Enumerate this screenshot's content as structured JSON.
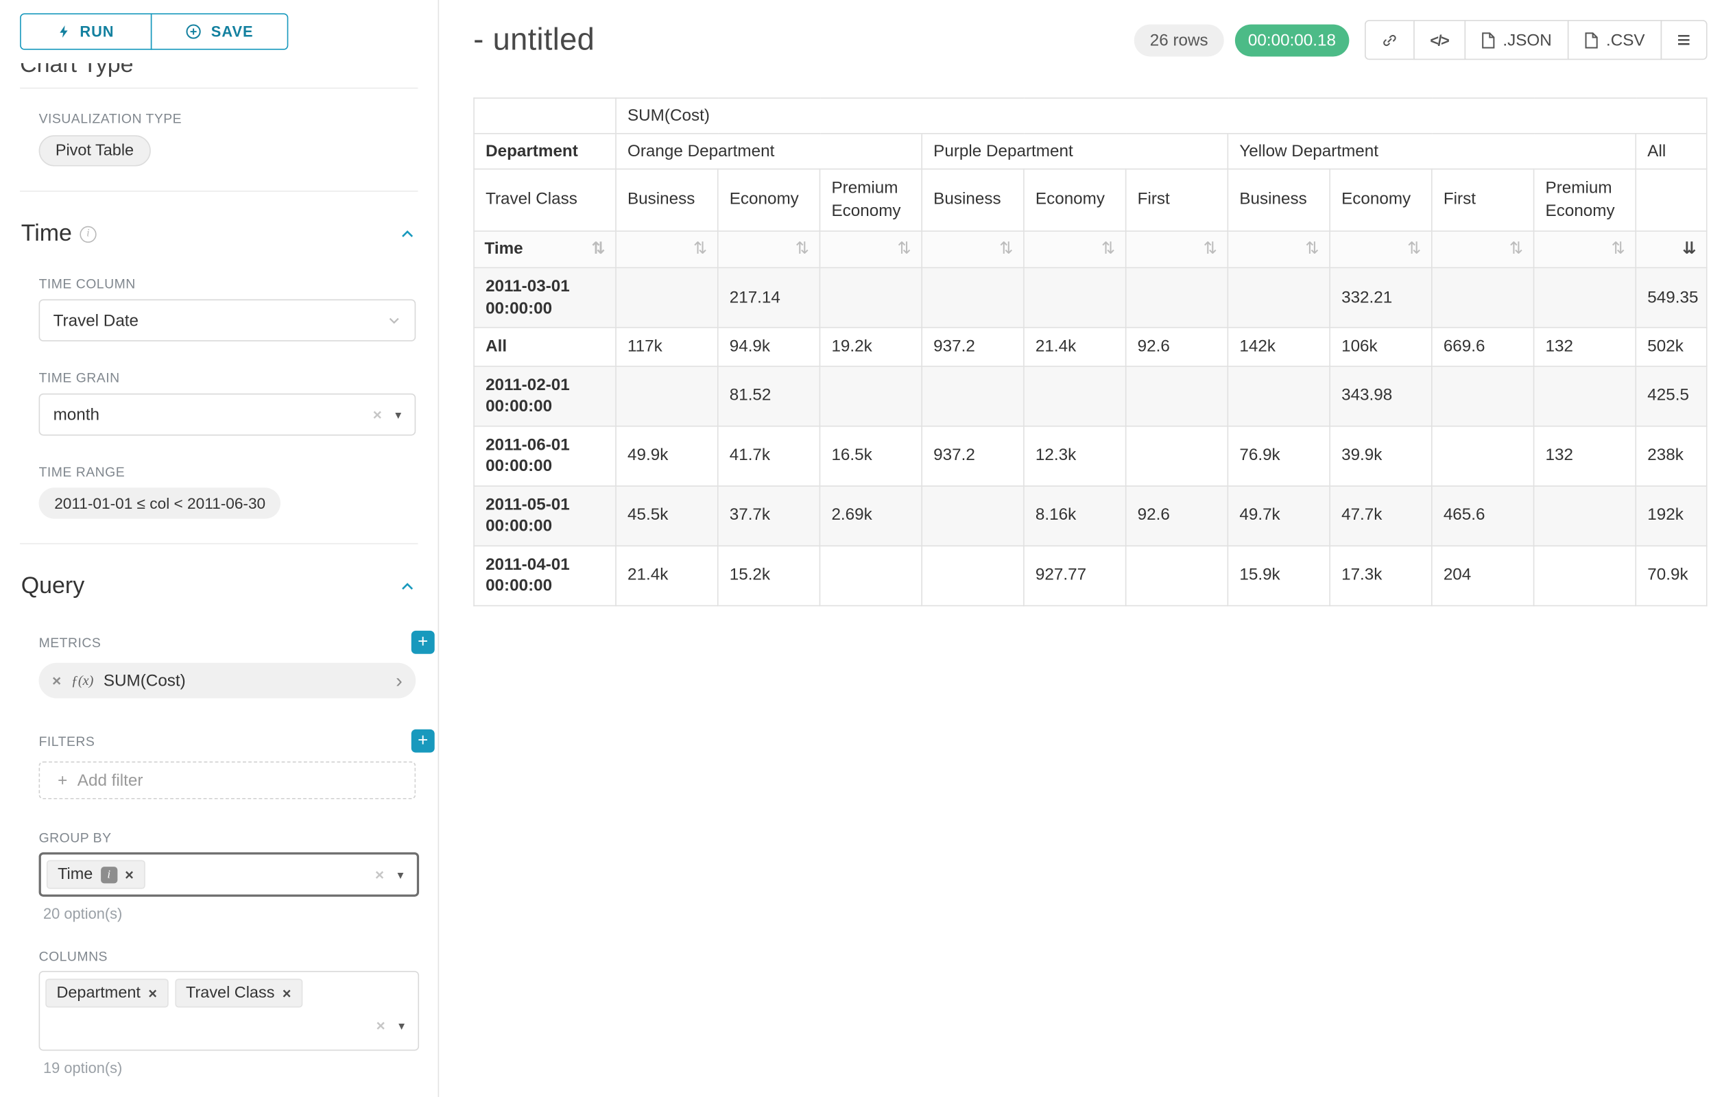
{
  "colors": {
    "accent": "#1899bd",
    "success": "#4cbb87",
    "table_border": "#e0e0e0",
    "chip_bg": "#f0f0f0"
  },
  "icons": {
    "close": "×",
    "plus": "+",
    "sort": "⇅",
    "sort_desc": "⇊",
    "caret_down": "▾",
    "chevron_right": "›",
    "code": "</>",
    "menu": "≡",
    "info": "i"
  },
  "sidebar": {
    "run_label": "RUN",
    "save_label": "SAVE",
    "chart_type_heading": "Chart Type",
    "visualization": {
      "label": "VISUALIZATION TYPE",
      "value": "Pivot Table"
    },
    "time": {
      "title": "Time",
      "column_label": "TIME COLUMN",
      "column_value": "Travel Date",
      "grain_label": "TIME GRAIN",
      "grain_value": "month",
      "range_label": "TIME RANGE",
      "range_value": "2011-01-01 ≤ col < 2011-06-30"
    },
    "query": {
      "title": "Query",
      "metrics_label": "METRICS",
      "metric_fx": "ƒ(x)",
      "metric_value": "SUM(Cost)",
      "filters_label": "FILTERS",
      "add_filter": "Add filter",
      "group_by_label": "GROUP BY",
      "group_by_chips": [
        "Time"
      ],
      "group_by_hint": "20 option(s)",
      "columns_label": "COLUMNS",
      "column_chips": [
        "Department",
        "Travel Class"
      ],
      "columns_hint": "19 option(s)"
    }
  },
  "header": {
    "title": "- untitled",
    "rows_badge": "26 rows",
    "timer": "00:00:00.18",
    "json_label": ".JSON",
    "csv_label": ".CSV"
  },
  "pivot_table": {
    "metric_header": "SUM(Cost)",
    "department_label": "Department",
    "travel_class_label": "Travel Class",
    "time_label": "Time",
    "groups": [
      {
        "label": "Orange Department",
        "children": [
          "Business",
          "Economy",
          "Premium Economy"
        ]
      },
      {
        "label": "Purple Department",
        "children": [
          "Business",
          "Economy",
          "First"
        ]
      },
      {
        "label": "Yellow Department",
        "children": [
          "Business",
          "Economy",
          "First",
          "Premium Economy"
        ]
      },
      {
        "label": "All",
        "children": [
          ""
        ]
      }
    ],
    "rows": [
      {
        "label": "2011-03-01 00:00:00",
        "values": [
          "",
          "217.14",
          "",
          "",
          "",
          "",
          "",
          "332.21",
          "",
          "",
          "549.35"
        ]
      },
      {
        "label": "All",
        "values": [
          "117k",
          "94.9k",
          "19.2k",
          "937.2",
          "21.4k",
          "92.6",
          "142k",
          "106k",
          "669.6",
          "132",
          "502k"
        ]
      },
      {
        "label": "2011-02-01 00:00:00",
        "values": [
          "",
          "81.52",
          "",
          "",
          "",
          "",
          "",
          "343.98",
          "",
          "",
          "425.5"
        ]
      },
      {
        "label": "2011-06-01 00:00:00",
        "values": [
          "49.9k",
          "41.7k",
          "16.5k",
          "937.2",
          "12.3k",
          "",
          "76.9k",
          "39.9k",
          "",
          "132",
          "238k"
        ]
      },
      {
        "label": "2011-05-01 00:00:00",
        "values": [
          "45.5k",
          "37.7k",
          "2.69k",
          "",
          "8.16k",
          "92.6",
          "49.7k",
          "47.7k",
          "465.6",
          "",
          "192k"
        ]
      },
      {
        "label": "2011-04-01 00:00:00",
        "values": [
          "21.4k",
          "15.2k",
          "",
          "",
          "927.77",
          "",
          "15.9k",
          "17.3k",
          "204",
          "",
          "70.9k"
        ]
      }
    ]
  }
}
